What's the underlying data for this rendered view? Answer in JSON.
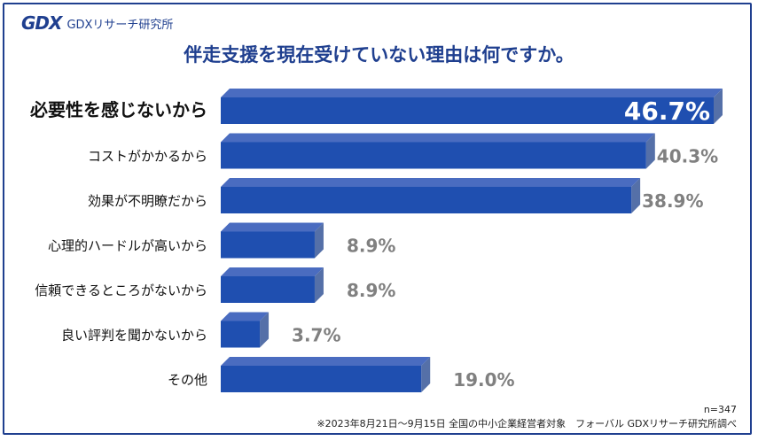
{
  "header": {
    "logo_mark": "GDX",
    "logo_text": "GDXリサーチ研究所"
  },
  "footer": {
    "sample": "n=347",
    "note": "※2023年8月21日～9月15日 全国の中小企業経営者対象　フォーバル GDXリサーチ研究所調べ"
  },
  "colors": {
    "bar_front": "#1f4fb0",
    "bar_side": "#5570a8",
    "bar_top": "#4a6cc0",
    "value_grey": "#808080",
    "value_top": "#ffffff"
  },
  "chart_data": {
    "type": "bar",
    "orientation": "horizontal",
    "title": "伴走支援を現在受けていない理由は何ですか。",
    "unit": "%",
    "xlim": [
      0,
      50
    ],
    "categories": [
      "必要性を感じないから",
      "コストがかかるから",
      "効果が不明瞭だから",
      "心理的ハードルが高いから",
      "信頼できるところがないから",
      "良い評判を聞かないから",
      "その他"
    ],
    "values": [
      46.7,
      40.3,
      38.9,
      8.9,
      8.9,
      3.7,
      19.0
    ],
    "value_labels": [
      "46.7%",
      "40.3%",
      "38.9%",
      "8.9%",
      "8.9%",
      "3.7%",
      "19.0%"
    ],
    "highlight_index": 0
  }
}
